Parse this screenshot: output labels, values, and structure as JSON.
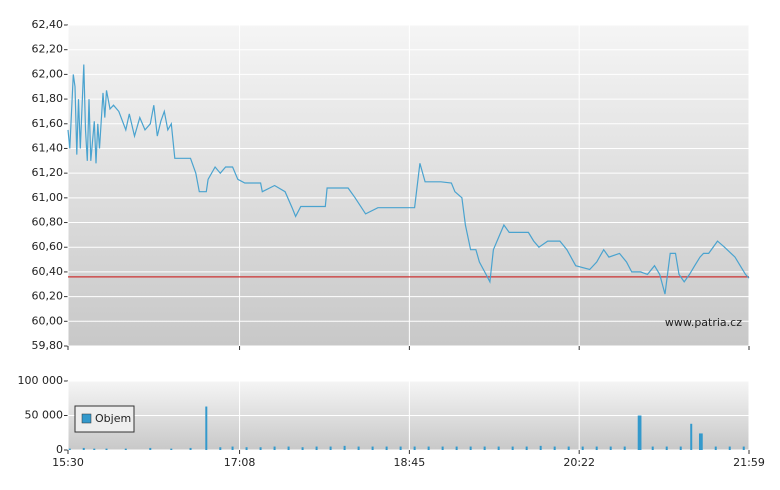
{
  "chart_data": [
    {
      "type": "line",
      "watermark": "www.patria.cz",
      "xlim": [
        "15:30",
        "21:59"
      ],
      "ylim": [
        59.8,
        62.4
      ],
      "yticks": [
        {
          "value": 59.8,
          "label": "59,80"
        },
        {
          "value": 60.0,
          "label": "60,00"
        },
        {
          "value": 60.2,
          "label": "60,20"
        },
        {
          "value": 60.4,
          "label": "60,40"
        },
        {
          "value": 60.6,
          "label": "60,60"
        },
        {
          "value": 60.8,
          "label": "60,80"
        },
        {
          "value": 61.0,
          "label": "61,00"
        },
        {
          "value": 61.2,
          "label": "61,20"
        },
        {
          "value": 61.4,
          "label": "61,40"
        },
        {
          "value": 61.6,
          "label": "61,60"
        },
        {
          "value": 61.8,
          "label": "61,80"
        },
        {
          "value": 62.0,
          "label": "62,00"
        },
        {
          "value": 62.2,
          "label": "62,20"
        },
        {
          "value": 62.4,
          "label": "62,40"
        }
      ],
      "reference_line": {
        "value": 60.36,
        "color": "#cc3333"
      },
      "grid": true,
      "series": [
        {
          "color": "#4aa3cf",
          "x": [
            "15:30",
            "15:31",
            "15:33",
            "15:34",
            "15:35",
            "15:36",
            "15:37",
            "15:39",
            "15:40",
            "15:41",
            "15:42",
            "15:43",
            "15:45",
            "15:46",
            "15:47",
            "15:48",
            "15:50",
            "15:51",
            "15:52",
            "15:54",
            "15:56",
            "15:59",
            "16:03",
            "16:05",
            "16:08",
            "16:11",
            "16:14",
            "16:17",
            "16:19",
            "16:21",
            "16:23",
            "16:25",
            "16:27",
            "16:29",
            "16:31",
            "16:40",
            "16:43",
            "16:45",
            "16:49",
            "16:50",
            "16:54",
            "16:57",
            "17:00",
            "17:04",
            "17:07",
            "17:11",
            "17:20",
            "17:21",
            "17:28",
            "17:34",
            "17:38",
            "17:40",
            "17:43",
            "17:57",
            "17:58",
            "18:10",
            "18:14",
            "18:20",
            "18:27",
            "18:31",
            "18:48",
            "18:51",
            "18:54",
            "19:03",
            "19:09",
            "19:11",
            "19:15",
            "19:17",
            "19:20",
            "19:23",
            "19:25",
            "19:28",
            "19:31",
            "19:33",
            "19:39",
            "19:42",
            "19:53",
            "19:56",
            "19:59",
            "20:04",
            "20:11",
            "20:15",
            "20:20",
            "20:28",
            "20:32",
            "20:36",
            "20:39",
            "20:45",
            "20:49",
            "20:52",
            "20:57",
            "21:01",
            "21:05",
            "21:08",
            "21:11",
            "21:14",
            "21:17",
            "21:19",
            "21:22",
            "21:25",
            "21:28",
            "21:31",
            "21:33",
            "21:36",
            "21:41",
            "21:45",
            "21:51",
            "21:54",
            "21:57",
            "21:59"
          ],
          "values": [
            61.55,
            61.4,
            62.0,
            61.9,
            61.35,
            61.8,
            61.4,
            62.08,
            61.55,
            61.3,
            61.8,
            61.3,
            61.62,
            61.28,
            61.6,
            61.4,
            61.85,
            61.65,
            61.87,
            61.72,
            61.75,
            61.7,
            61.55,
            61.68,
            61.5,
            61.65,
            61.55,
            61.6,
            61.75,
            61.5,
            61.62,
            61.7,
            61.55,
            61.6,
            61.32,
            61.32,
            61.2,
            61.05,
            61.05,
            61.15,
            61.25,
            61.2,
            61.25,
            61.25,
            61.15,
            61.12,
            61.12,
            61.05,
            61.1,
            61.05,
            60.92,
            60.85,
            60.93,
            60.93,
            61.08,
            61.08,
            61.0,
            60.87,
            60.92,
            60.92,
            60.92,
            61.28,
            61.13,
            61.13,
            61.12,
            61.05,
            61.0,
            60.78,
            60.58,
            60.58,
            60.48,
            60.4,
            60.32,
            60.58,
            60.78,
            60.72,
            60.72,
            60.65,
            60.6,
            60.65,
            60.65,
            60.58,
            60.45,
            60.42,
            60.48,
            60.58,
            60.52,
            60.55,
            60.48,
            60.4,
            60.4,
            60.38,
            60.45,
            60.38,
            60.22,
            60.55,
            60.55,
            60.38,
            60.32,
            60.38,
            60.45,
            60.52,
            60.55,
            60.55,
            60.65,
            60.6,
            60.52,
            60.45,
            60.38,
            60.35
          ]
        }
      ]
    },
    {
      "type": "bar",
      "xlim": [
        "15:30",
        "21:59"
      ],
      "xticks": [
        "15:30",
        "17:08",
        "18:45",
        "20:22",
        "21:59"
      ],
      "ylim": [
        0,
        100000
      ],
      "yticks": [
        0,
        {
          "value": 50000,
          "label": "50 000"
        },
        {
          "value": 100000,
          "label": "100 000"
        }
      ],
      "grid": true,
      "legend": "top-left",
      "series": [
        {
          "name": "Objem",
          "color": "#3399cc",
          "x": [
            "15:31",
            "15:39",
            "15:45",
            "15:52",
            "16:03",
            "16:17",
            "16:29",
            "16:40",
            "16:49",
            "16:57",
            "17:04",
            "17:12",
            "17:20",
            "17:28",
            "17:36",
            "17:44",
            "17:52",
            "18:00",
            "18:08",
            "18:16",
            "18:24",
            "18:32",
            "18:40",
            "18:48",
            "18:56",
            "19:04",
            "19:12",
            "19:20",
            "19:28",
            "19:36",
            "19:44",
            "19:52",
            "20:00",
            "20:08",
            "20:16",
            "20:24",
            "20:32",
            "20:40",
            "20:48",
            "20:56",
            "20:57",
            "21:04",
            "21:12",
            "21:20",
            "21:26",
            "21:31",
            "21:32",
            "21:40",
            "21:48",
            "21:56"
          ],
          "values": [
            2000,
            3000,
            2000,
            2000,
            2000,
            3000,
            2000,
            3000,
            63000,
            4000,
            5000,
            4000,
            4000,
            5000,
            5000,
            4000,
            5000,
            5000,
            6000,
            5000,
            5000,
            5000,
            5000,
            5000,
            5000,
            5000,
            5000,
            5000,
            5000,
            5000,
            5000,
            5000,
            6000,
            5000,
            5000,
            5000,
            5000,
            5000,
            5000,
            50000,
            50000,
            5000,
            5000,
            5000,
            38000,
            24000,
            24000,
            5000,
            5000,
            5000
          ]
        }
      ]
    }
  ]
}
